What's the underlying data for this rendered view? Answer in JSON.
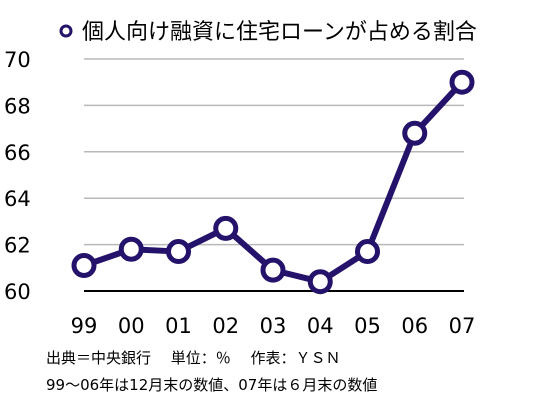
{
  "chart_data": {
    "type": "line",
    "title": "個人向け融資に住宅ローンが占める割合",
    "categories": [
      "99",
      "00",
      "01",
      "02",
      "03",
      "04",
      "05",
      "06",
      "07"
    ],
    "series": [
      {
        "name": "個人向け融資に住宅ローンが占める割合",
        "values": [
          61.1,
          61.8,
          61.7,
          62.7,
          60.9,
          60.4,
          61.7,
          66.8,
          69.0
        ]
      }
    ],
    "xlabel": "",
    "ylabel": "",
    "ylim": [
      60,
      70
    ],
    "yticks": [
      60,
      62,
      64,
      66,
      68,
      70
    ],
    "grid": true,
    "legend": "top-left",
    "colors": {
      "line": "#25126b",
      "marker_fill": "#ffffff",
      "grid": "#b8b8b8"
    }
  },
  "footnotes": {
    "source": "出典＝中央銀行　 単位：％　 作表：ＹＳＮ",
    "note": "99〜06年は12月末の数値、07年は６月末の数値"
  }
}
